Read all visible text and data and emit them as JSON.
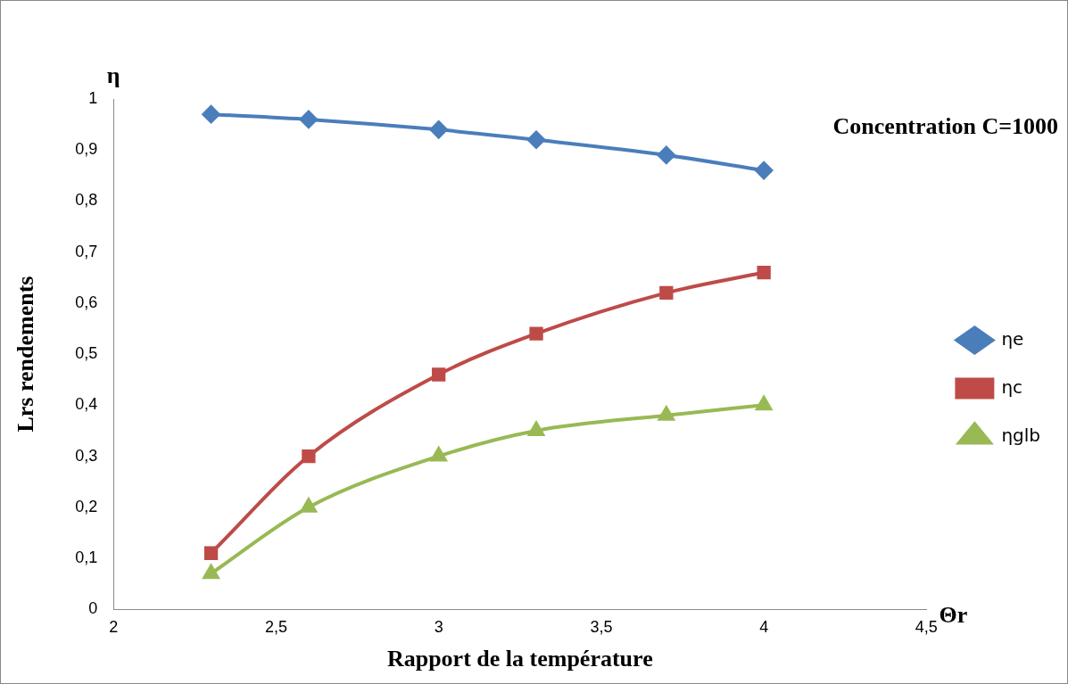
{
  "chart_data": {
    "type": "line",
    "xlabel": "Rapport de la température",
    "ylabel": "Lrs rendements",
    "annotations": [
      "η",
      "Θr",
      "Concentration C=1000"
    ],
    "x": [
      2.3,
      2.6,
      3,
      3.3,
      3.7,
      4
    ],
    "series": [
      {
        "name": "ηe",
        "color": "#4a7ebb",
        "marker": "diamond",
        "values": [
          0.97,
          0.96,
          0.94,
          0.92,
          0.89,
          0.86
        ]
      },
      {
        "name": "ηc",
        "color": "#be4b48",
        "marker": "square",
        "values": [
          0.11,
          0.3,
          0.46,
          0.54,
          0.62,
          0.66
        ]
      },
      {
        "name": "ηglb",
        "color": "#98b954",
        "marker": "triangle",
        "values": [
          0.07,
          0.2,
          0.3,
          0.35,
          0.38,
          0.4
        ]
      }
    ],
    "xlim": [
      2,
      4.5
    ],
    "xticks": [
      2,
      {
        "value": 2.5,
        "label": "2,5"
      },
      3,
      {
        "value": 3.5,
        "label": "3,5"
      },
      4,
      {
        "value": 4.5,
        "label": "4,5"
      }
    ],
    "ylim": [
      0,
      1
    ],
    "yticks": [
      0,
      {
        "value": 0.1,
        "label": "0,1"
      },
      {
        "value": 0.2,
        "label": "0,2"
      },
      {
        "value": 0.3,
        "label": "0,3"
      },
      {
        "value": 0.4,
        "label": "0,4"
      },
      {
        "value": 0.5,
        "label": "0,5"
      },
      {
        "value": 0.6,
        "label": "0,6"
      },
      {
        "value": 0.7,
        "label": "0,7"
      },
      {
        "value": 0.8,
        "label": "0,8"
      },
      {
        "value": 0.9,
        "label": "0,9"
      },
      1
    ],
    "grid": false,
    "legend": "right",
    "line_style": "solid"
  }
}
